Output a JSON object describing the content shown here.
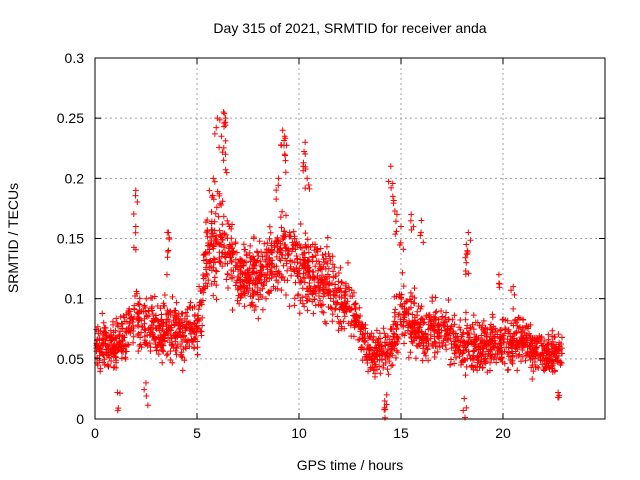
{
  "chart_data": {
    "type": "scatter",
    "title": "Day 315 of 2021, SRMTID for receiver anda",
    "xlabel": "GPS time / hours",
    "ylabel": "SRMTID / TECUs",
    "xlim": [
      0,
      25
    ],
    "ylim": [
      0,
      0.3
    ],
    "xticks": [
      0,
      5,
      10,
      15,
      20
    ],
    "xtick_labels": [
      "0",
      "5",
      "10",
      "15",
      "20"
    ],
    "yticks": [
      0,
      0.05,
      0.1,
      0.15,
      0.2,
      0.25,
      0.3
    ],
    "ytick_labels": [
      "0",
      "0.05",
      "0.1",
      "0.15",
      "0.2",
      "0.25",
      "0.3"
    ],
    "grid": true,
    "marker": "+",
    "marker_color": "#ff0000",
    "x_data_range": [
      0,
      22.9
    ],
    "trend": [
      {
        "x": 0.0,
        "mean": 0.065,
        "spread": 0.025
      },
      {
        "x": 1.0,
        "mean": 0.058,
        "spread": 0.025
      },
      {
        "x": 2.0,
        "mean": 0.085,
        "spread": 0.03
      },
      {
        "x": 3.0,
        "mean": 0.075,
        "spread": 0.03
      },
      {
        "x": 4.0,
        "mean": 0.07,
        "spread": 0.03
      },
      {
        "x": 5.0,
        "mean": 0.075,
        "spread": 0.03
      },
      {
        "x": 5.5,
        "mean": 0.14,
        "spread": 0.045
      },
      {
        "x": 6.3,
        "mean": 0.15,
        "spread": 0.05
      },
      {
        "x": 7.0,
        "mean": 0.12,
        "spread": 0.035
      },
      {
        "x": 8.0,
        "mean": 0.12,
        "spread": 0.035
      },
      {
        "x": 9.3,
        "mean": 0.14,
        "spread": 0.045
      },
      {
        "x": 10.5,
        "mean": 0.12,
        "spread": 0.04
      },
      {
        "x": 11.5,
        "mean": 0.11,
        "spread": 0.035
      },
      {
        "x": 12.5,
        "mean": 0.095,
        "spread": 0.03
      },
      {
        "x": 13.5,
        "mean": 0.055,
        "spread": 0.02
      },
      {
        "x": 14.5,
        "mean": 0.06,
        "spread": 0.025
      },
      {
        "x": 15.0,
        "mean": 0.09,
        "spread": 0.035
      },
      {
        "x": 16.0,
        "mean": 0.07,
        "spread": 0.025
      },
      {
        "x": 17.0,
        "mean": 0.075,
        "spread": 0.025
      },
      {
        "x": 18.0,
        "mean": 0.06,
        "spread": 0.025
      },
      {
        "x": 19.0,
        "mean": 0.06,
        "spread": 0.025
      },
      {
        "x": 20.0,
        "mean": 0.065,
        "spread": 0.025
      },
      {
        "x": 21.0,
        "mean": 0.065,
        "spread": 0.025
      },
      {
        "x": 22.0,
        "mean": 0.055,
        "spread": 0.02
      },
      {
        "x": 22.9,
        "mean": 0.055,
        "spread": 0.02
      }
    ],
    "features": [
      {
        "x": 2.0,
        "y": 0.19
      },
      {
        "x": 2.0,
        "y": 0.16
      },
      {
        "x": 3.6,
        "y": 0.155
      },
      {
        "x": 3.6,
        "y": 0.14
      },
      {
        "x": 6.0,
        "y": 0.25
      },
      {
        "x": 6.3,
        "y": 0.255
      },
      {
        "x": 6.4,
        "y": 0.25
      },
      {
        "x": 6.2,
        "y": 0.235
      },
      {
        "x": 6.4,
        "y": 0.22
      },
      {
        "x": 5.8,
        "y": 0.2
      },
      {
        "x": 9.2,
        "y": 0.24
      },
      {
        "x": 9.3,
        "y": 0.235
      },
      {
        "x": 9.3,
        "y": 0.22
      },
      {
        "x": 9.0,
        "y": 0.2
      },
      {
        "x": 10.3,
        "y": 0.23
      },
      {
        "x": 10.2,
        "y": 0.21
      },
      {
        "x": 10.4,
        "y": 0.2
      },
      {
        "x": 14.5,
        "y": 0.21
      },
      {
        "x": 14.6,
        "y": 0.185
      },
      {
        "x": 14.8,
        "y": 0.17
      },
      {
        "x": 15.5,
        "y": 0.17
      },
      {
        "x": 15.0,
        "y": 0.16
      },
      {
        "x": 16.0,
        "y": 0.165
      },
      {
        "x": 18.3,
        "y": 0.155
      },
      {
        "x": 18.2,
        "y": 0.145
      },
      {
        "x": 18.2,
        "y": 0.13
      },
      {
        "x": 19.8,
        "y": 0.12
      },
      {
        "x": 20.5,
        "y": 0.11
      },
      {
        "x": 14.2,
        "y": 0.015
      },
      {
        "x": 14.3,
        "y": 0.02
      },
      {
        "x": 18.1,
        "y": 0.017
      },
      {
        "x": 1.1,
        "y": 0.022
      },
      {
        "x": 22.7,
        "y": 0.022
      },
      {
        "x": 2.5,
        "y": 0.03
      }
    ]
  }
}
